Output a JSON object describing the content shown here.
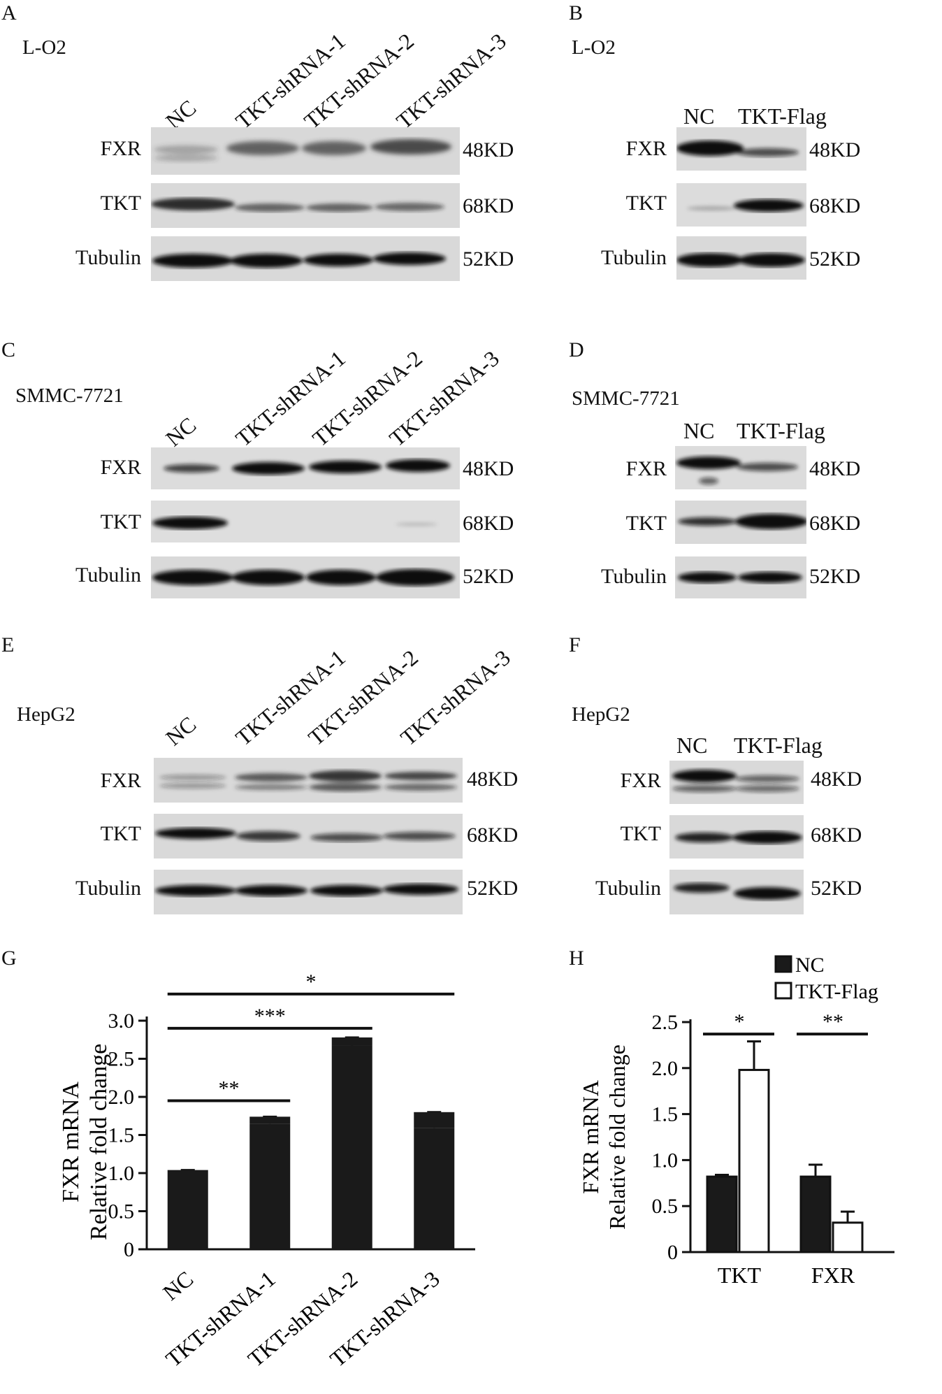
{
  "panels": {
    "A": {
      "letter": "A",
      "cell_line": "L-O2",
      "lanes": [
        "NC",
        "TKT-shRNA-1",
        "TKT-shRNA-2",
        "TKT-shRNA-3"
      ],
      "rows": [
        {
          "label": "FXR",
          "kd": "48KD"
        },
        {
          "label": "TKT",
          "kd": "68KD"
        },
        {
          "label": "Tubulin",
          "kd": "52KD"
        }
      ]
    },
    "B": {
      "letter": "B",
      "cell_line": "L-O2",
      "lanes": [
        "NC",
        "TKT-Flag"
      ],
      "rows": [
        {
          "label": "FXR",
          "kd": "48KD"
        },
        {
          "label": "TKT",
          "kd": "68KD"
        },
        {
          "label": "Tubulin",
          "kd": "52KD"
        }
      ]
    },
    "C": {
      "letter": "C",
      "cell_line": "SMMC-7721",
      "lanes": [
        "NC",
        "TKT-shRNA-1",
        "TKT-shRNA-2",
        "TKT-shRNA-3"
      ],
      "rows": [
        {
          "label": "FXR",
          "kd": "48KD"
        },
        {
          "label": "TKT",
          "kd": "68KD"
        },
        {
          "label": "Tubulin",
          "kd": "52KD"
        }
      ]
    },
    "D": {
      "letter": "D",
      "cell_line": "SMMC-7721",
      "lanes": [
        "NC",
        "TKT-Flag"
      ],
      "rows": [
        {
          "label": "FXR",
          "kd": "48KD"
        },
        {
          "label": "TKT",
          "kd": "68KD"
        },
        {
          "label": "Tubulin",
          "kd": "52KD"
        }
      ]
    },
    "E": {
      "letter": "E",
      "cell_line": "HepG2",
      "lanes": [
        "NC",
        "TKT-shRNA-1",
        "TKT-shRNA-2",
        "TKT-shRNA-3"
      ],
      "rows": [
        {
          "label": "FXR",
          "kd": "48KD"
        },
        {
          "label": "TKT",
          "kd": "68KD"
        },
        {
          "label": "Tubulin",
          "kd": "52KD"
        }
      ]
    },
    "F": {
      "letter": "F",
      "cell_line": "HepG2",
      "lanes": [
        "NC",
        "TKT-Flag"
      ],
      "rows": [
        {
          "label": "FXR",
          "kd": "48KD"
        },
        {
          "label": "TKT",
          "kd": "68KD"
        },
        {
          "label": "Tubulin",
          "kd": "52KD"
        }
      ]
    },
    "G": {
      "letter": "G"
    },
    "H": {
      "letter": "H"
    }
  },
  "chart_data": [
    {
      "panel": "G",
      "type": "bar",
      "categories": [
        "NC",
        "TKT-shRNA-1",
        "TKT-shRNA-2",
        "TKT-shRNA-3"
      ],
      "values": [
        1.0,
        1.65,
        2.67,
        1.59
      ],
      "errors": [
        0.04,
        0.09,
        0.11,
        0.21
      ],
      "ylabel": [
        "FXR mRNA",
        "Relative fold change"
      ],
      "ylim": [
        0,
        3.0
      ],
      "yticks": [
        "0",
        "0.5",
        "1.0",
        "1.5",
        "2.0",
        "2.5",
        "3.0"
      ],
      "bar_color": "#1a1a1a",
      "significance": [
        {
          "from": "NC",
          "to": "TKT-shRNA-1",
          "label": "**"
        },
        {
          "from": "NC",
          "to": "TKT-shRNA-2",
          "label": "***"
        },
        {
          "from": "NC",
          "to": "TKT-shRNA-3",
          "label": "*"
        }
      ]
    },
    {
      "panel": "H",
      "type": "bar",
      "categories": [
        "TKT",
        "FXR"
      ],
      "series": [
        {
          "name": "NC",
          "values": [
            0.82,
            0.82
          ],
          "errors": [
            0.02,
            0.13
          ],
          "fill": "#1a1a1a"
        },
        {
          "name": "TKT-Flag",
          "values": [
            1.98,
            0.32
          ],
          "errors": [
            0.31,
            0.12
          ],
          "fill": "#ffffff"
        }
      ],
      "ylabel": [
        "FXR mRNA",
        "Relative fold change"
      ],
      "ylim": [
        0,
        2.5
      ],
      "yticks": [
        "0",
        "0.5",
        "1.0",
        "1.5",
        "2.0",
        "2.5"
      ],
      "legend_position": "top-right",
      "significance": [
        {
          "category": "TKT",
          "label": "*"
        },
        {
          "category": "FXR",
          "label": "**"
        }
      ]
    }
  ]
}
